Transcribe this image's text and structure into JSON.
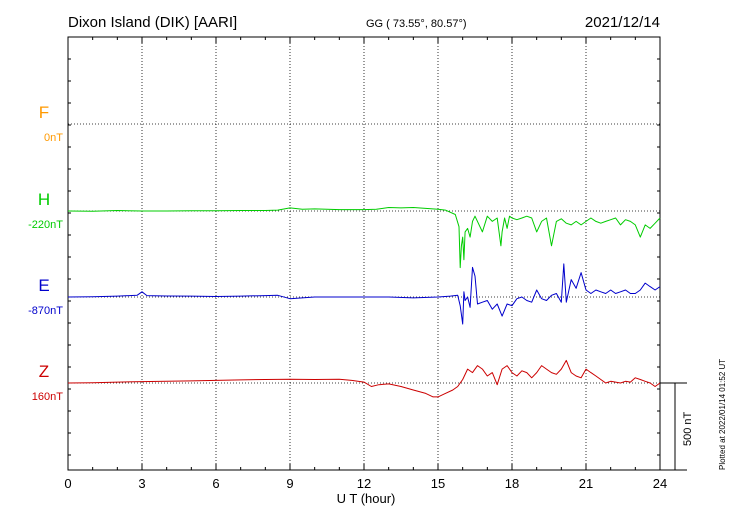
{
  "header": {
    "station": "Dixon Island (DIK)  [AARI]",
    "coords": "GG ( 73.55°,  80.57°)",
    "date": "2021/12/14"
  },
  "plotted_note": "Plotted at 2022/01/14 01:52 UT",
  "chart_data": {
    "type": "line",
    "xlabel": "U T (hour)",
    "xlim": [
      0,
      24
    ],
    "xticks": [
      0,
      3,
      6,
      9,
      12,
      15,
      18,
      21,
      24
    ],
    "scale_bar_label": "500 nT",
    "grid": true,
    "series": [
      {
        "name": "F",
        "baseline_label": "0nT",
        "color": "#ff9900",
        "x": [],
        "y": []
      },
      {
        "name": "H",
        "baseline_label": "-220nT",
        "color": "#00cc00",
        "x": [
          0,
          1,
          2,
          3,
          4,
          5,
          6,
          7,
          8,
          8.5,
          9,
          9.5,
          10,
          11,
          12,
          12.5,
          13,
          13.5,
          14,
          14.5,
          15,
          15.3,
          15.7,
          15.85,
          15.9,
          15.95,
          16,
          16.05,
          16.1,
          16.2,
          16.3,
          16.4,
          16.5,
          16.8,
          17,
          17.2,
          17.4,
          17.55,
          17.6,
          17.7,
          17.8,
          17.9,
          18,
          18.2,
          18.4,
          18.6,
          18.8,
          19,
          19.2,
          19.4,
          19.6,
          19.8,
          20,
          20.2,
          20.4,
          20.6,
          20.8,
          21,
          21.2,
          21.4,
          21.6,
          21.8,
          22,
          22.2,
          22.4,
          22.6,
          22.8,
          23,
          23.2,
          23.4,
          23.6,
          23.8,
          24
        ],
        "y": [
          0,
          -2,
          3,
          0,
          0,
          2,
          1,
          3,
          3,
          5,
          18,
          10,
          12,
          8,
          8,
          10,
          20,
          18,
          20,
          15,
          10,
          5,
          -20,
          -90,
          -325,
          -200,
          -150,
          -280,
          -120,
          -100,
          -150,
          -60,
          -30,
          -120,
          -30,
          -60,
          -40,
          -200,
          -120,
          -40,
          -100,
          -30,
          -40,
          -50,
          -40,
          -30,
          -40,
          -120,
          -60,
          -40,
          -200,
          -60,
          -45,
          -70,
          -80,
          -60,
          -80,
          -60,
          -40,
          -60,
          -70,
          -60,
          -50,
          -40,
          -80,
          -50,
          -60,
          -80,
          -150,
          -80,
          -100,
          -70,
          -40
        ]
      },
      {
        "name": "E",
        "baseline_label": "-870nT",
        "color": "#0000cc",
        "x": [
          0,
          1,
          2,
          2.8,
          3,
          3.2,
          4,
          5,
          6,
          7,
          8,
          8.5,
          9,
          9.5,
          10,
          11,
          12,
          13,
          14,
          15,
          15.5,
          15.8,
          15.9,
          15.95,
          16,
          16.05,
          16.1,
          16.2,
          16.3,
          16.4,
          16.5,
          16.6,
          16.8,
          17,
          17.2,
          17.4,
          17.6,
          17.8,
          18,
          18.2,
          18.4,
          18.6,
          18.8,
          19,
          19.2,
          19.4,
          19.6,
          19.8,
          20,
          20.1,
          20.2,
          20.4,
          20.6,
          20.8,
          21,
          21.2,
          21.4,
          21.6,
          21.8,
          22,
          22.2,
          22.4,
          22.6,
          22.8,
          23,
          23.2,
          23.4,
          23.6,
          23.8,
          24
        ],
        "y": [
          0,
          2,
          5,
          10,
          30,
          8,
          6,
          5,
          3,
          5,
          8,
          10,
          -10,
          -5,
          0,
          0,
          0,
          0,
          -5,
          0,
          5,
          10,
          -50,
          -100,
          -155,
          30,
          -20,
          0,
          -60,
          170,
          120,
          -40,
          -30,
          -20,
          -70,
          -40,
          -110,
          -40,
          -50,
          -10,
          0,
          -20,
          -30,
          40,
          -10,
          -20,
          10,
          20,
          -30,
          190,
          -30,
          100,
          50,
          140,
          40,
          20,
          40,
          30,
          20,
          40,
          20,
          30,
          40,
          20,
          20,
          40,
          80,
          60,
          40,
          60
        ]
      },
      {
        "name": "Z",
        "baseline_label": "160nT",
        "color": "#cc0000",
        "x": [
          0,
          1,
          2,
          3,
          4,
          5,
          6,
          7,
          8,
          9,
          10,
          11,
          11.5,
          12,
          12.3,
          12.6,
          13,
          13.5,
          14,
          14.5,
          14.8,
          15,
          15.3,
          15.6,
          15.8,
          16,
          16.2,
          16.4,
          16.6,
          16.8,
          17,
          17.2,
          17.4,
          17.6,
          17.8,
          18,
          18.2,
          18.4,
          18.6,
          18.8,
          19,
          19.2,
          19.4,
          19.6,
          19.8,
          20,
          20.2,
          20.4,
          20.6,
          20.8,
          21,
          21.2,
          21.4,
          21.6,
          21.8,
          22,
          22.2,
          22.4,
          22.6,
          22.8,
          23,
          23.2,
          23.4,
          23.6,
          23.8,
          24
        ],
        "y": [
          0,
          2,
          5,
          8,
          10,
          12,
          15,
          18,
          20,
          22,
          20,
          22,
          15,
          5,
          -20,
          -10,
          -5,
          -20,
          -40,
          -60,
          -80,
          -80,
          -60,
          -40,
          -20,
          20,
          80,
          60,
          100,
          80,
          40,
          60,
          -10,
          80,
          100,
          60,
          40,
          70,
          60,
          30,
          60,
          100,
          80,
          60,
          50,
          80,
          130,
          60,
          40,
          30,
          80,
          60,
          40,
          20,
          0,
          10,
          5,
          0,
          10,
          5,
          30,
          20,
          10,
          0,
          -20,
          0
        ]
      }
    ]
  }
}
